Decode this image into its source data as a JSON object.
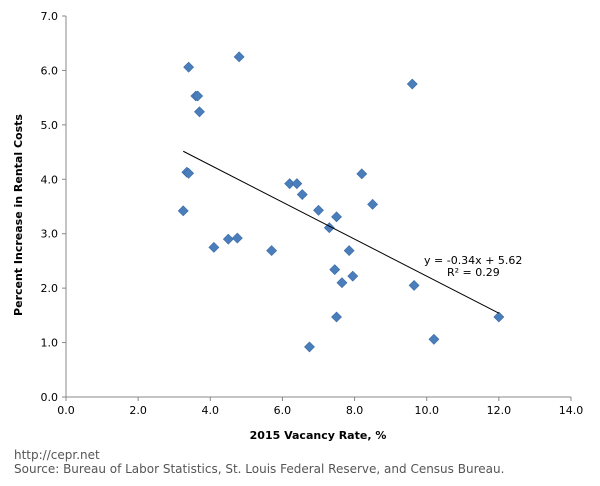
{
  "chart_data": {
    "type": "scatter",
    "title": "",
    "xlabel": "2015 Vacancy Rate, %",
    "ylabel": "Percent Increase in Rental Costs",
    "xlim": [
      0,
      14
    ],
    "ylim": [
      0,
      7
    ],
    "x_ticks": [
      "0.0",
      "2.0",
      "4.0",
      "6.0",
      "8.0",
      "10.0",
      "12.0",
      "14.0"
    ],
    "y_ticks": [
      "0.0",
      "1.0",
      "2.0",
      "3.0",
      "4.0",
      "5.0",
      "6.0",
      "7.0"
    ],
    "grid": false,
    "marker": "diamond",
    "marker_color": "#4a7ebb",
    "points": [
      {
        "x": 3.4,
        "y": 6.06
      },
      {
        "x": 4.8,
        "y": 6.25
      },
      {
        "x": 3.6,
        "y": 5.53
      },
      {
        "x": 3.65,
        "y": 5.53
      },
      {
        "x": 3.7,
        "y": 5.24
      },
      {
        "x": 9.6,
        "y": 5.75
      },
      {
        "x": 3.35,
        "y": 4.13
      },
      {
        "x": 3.4,
        "y": 4.11
      },
      {
        "x": 3.25,
        "y": 3.42
      },
      {
        "x": 4.1,
        "y": 2.75
      },
      {
        "x": 4.5,
        "y": 2.9
      },
      {
        "x": 4.75,
        "y": 2.92
      },
      {
        "x": 5.7,
        "y": 2.69
      },
      {
        "x": 6.2,
        "y": 3.92
      },
      {
        "x": 6.4,
        "y": 3.92
      },
      {
        "x": 6.55,
        "y": 3.72
      },
      {
        "x": 7.0,
        "y": 3.43
      },
      {
        "x": 7.5,
        "y": 3.31
      },
      {
        "x": 7.3,
        "y": 3.11
      },
      {
        "x": 8.2,
        "y": 4.1
      },
      {
        "x": 8.5,
        "y": 3.54
      },
      {
        "x": 7.85,
        "y": 2.69
      },
      {
        "x": 7.45,
        "y": 2.34
      },
      {
        "x": 7.95,
        "y": 2.22
      },
      {
        "x": 7.65,
        "y": 2.1
      },
      {
        "x": 9.65,
        "y": 2.05
      },
      {
        "x": 7.5,
        "y": 1.47
      },
      {
        "x": 6.75,
        "y": 0.92
      },
      {
        "x": 10.2,
        "y": 1.06
      },
      {
        "x": 12.0,
        "y": 1.47
      }
    ],
    "trendline": {
      "slope": -0.34,
      "intercept": 5.62,
      "x_start": 3.25,
      "x_end": 12.0,
      "color": "#000000"
    },
    "annotations": {
      "equation": "y = -0.34x + 5.62",
      "r_squared": "R² = 0.29"
    }
  },
  "footer": {
    "url": "http://cepr.net",
    "source": "Source: Bureau of Labor Statistics, St. Louis Federal Reserve, and Census Bureau."
  }
}
